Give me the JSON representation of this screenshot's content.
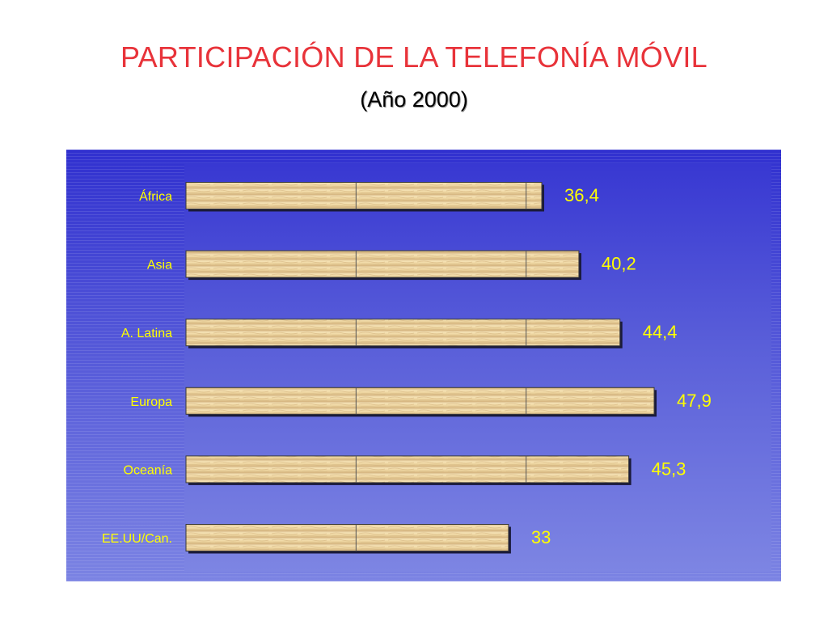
{
  "title": "PARTICIPACIÓN DE LA TELEFONÍA MÓVIL",
  "subtitle": "(Año 2000)",
  "colors": {
    "title": "#e8333a",
    "labels": "#ffff00",
    "bar_fill": "#f1d9a4",
    "panel_top": "#3030cf",
    "panel_bottom": "#7b83e3"
  },
  "chart_data": {
    "type": "bar",
    "orientation": "horizontal",
    "categories": [
      "África",
      "Asia",
      "A. Latina",
      "Europa",
      "Oceanía",
      "EE.UU/Can."
    ],
    "values": [
      36.4,
      40.2,
      44.4,
      47.9,
      45.3,
      33
    ],
    "value_labels": [
      "36,4",
      "40,2",
      "44,4",
      "47,9",
      "45,3",
      "33"
    ],
    "xlim": [
      0,
      60
    ],
    "grid": true,
    "legend": "none"
  }
}
